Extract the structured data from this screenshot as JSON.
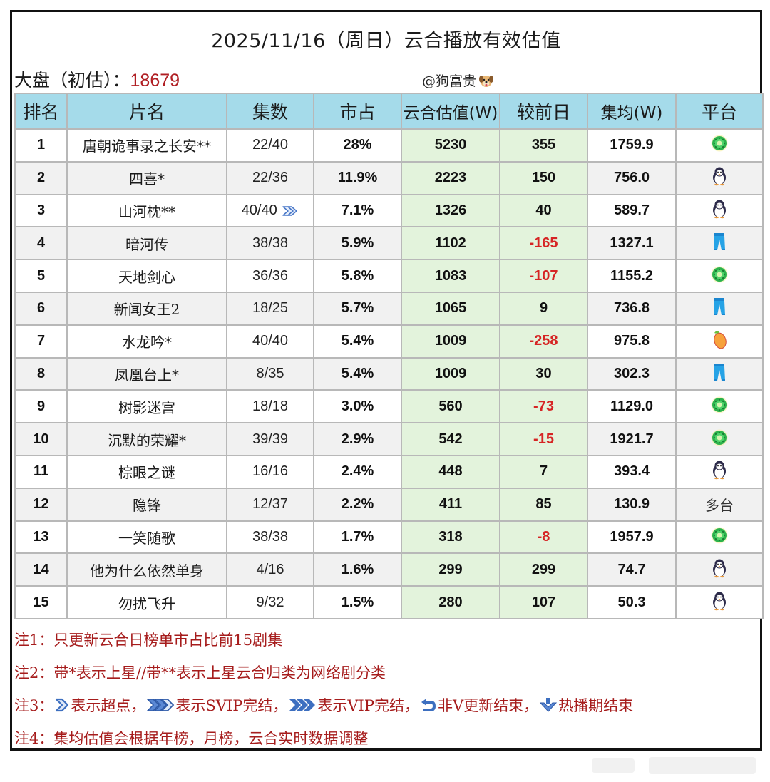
{
  "header": {
    "title": "2025/11/16（周日）云合播放有效估值",
    "summary_label": "大盘（初估）：",
    "summary_value": "18679",
    "credit": "@狗富贵",
    "credit_icon": "dog-face-icon"
  },
  "table": {
    "columns": [
      "排名",
      "片名",
      "集数",
      "市占",
      "云合估值(W)",
      "较前日",
      "集均(W)",
      "平台"
    ],
    "rows": [
      {
        "rank": "1",
        "title": "唐朝诡事录之长安**",
        "episodes": "22/40",
        "share": "28%",
        "value": "5230",
        "delta": "355",
        "avg": "1759.9",
        "platform": "kiwi-icon",
        "platform_text": ""
      },
      {
        "rank": "2",
        "title": "四喜*",
        "episodes": "22/36",
        "share": "11.9%",
        "value": "2223",
        "delta": "150",
        "avg": "756.0",
        "platform": "penguin-icon",
        "platform_text": ""
      },
      {
        "rank": "3",
        "title": "山河枕**",
        "episodes": "40/40",
        "episodes_badge": "single-chevron-icon",
        "share": "7.1%",
        "value": "1326",
        "delta": "40",
        "avg": "589.7",
        "platform": "penguin-icon",
        "platform_text": ""
      },
      {
        "rank": "4",
        "title": "暗河传",
        "episodes": "38/38",
        "share": "5.9%",
        "value": "1102",
        "delta": "-165",
        "avg": "1327.1",
        "platform": "pants-icon",
        "platform_text": ""
      },
      {
        "rank": "5",
        "title": "天地剑心",
        "episodes": "36/36",
        "share": "5.8%",
        "value": "1083",
        "delta": "-107",
        "avg": "1155.2",
        "platform": "kiwi-icon",
        "platform_text": ""
      },
      {
        "rank": "6",
        "title": "新闻女王2",
        "episodes": "18/25",
        "share": "5.7%",
        "value": "1065",
        "delta": "9",
        "avg": "736.8",
        "platform": "pants-icon",
        "platform_text": ""
      },
      {
        "rank": "7",
        "title": "水龙吟*",
        "episodes": "40/40",
        "share": "5.4%",
        "value": "1009",
        "delta": "-258",
        "avg": "975.8",
        "platform": "mango-icon",
        "platform_text": ""
      },
      {
        "rank": "8",
        "title": "凤凰台上*",
        "episodes": "8/35",
        "share": "5.4%",
        "value": "1009",
        "delta": "30",
        "avg": "302.3",
        "platform": "pants-icon",
        "platform_text": ""
      },
      {
        "rank": "9",
        "title": "树影迷宫",
        "episodes": "18/18",
        "share": "3.0%",
        "value": "560",
        "delta": "-73",
        "avg": "1129.0",
        "platform": "kiwi-icon",
        "platform_text": ""
      },
      {
        "rank": "10",
        "title": "沉默的荣耀*",
        "episodes": "39/39",
        "share": "2.9%",
        "value": "542",
        "delta": "-15",
        "avg": "1921.7",
        "platform": "kiwi-icon",
        "platform_text": ""
      },
      {
        "rank": "11",
        "title": "棕眼之谜",
        "episodes": "16/16",
        "share": "2.4%",
        "value": "448",
        "delta": "7",
        "avg": "393.4",
        "platform": "penguin-icon",
        "platform_text": ""
      },
      {
        "rank": "12",
        "title": "隐锋",
        "episodes": "12/37",
        "share": "2.2%",
        "value": "411",
        "delta": "85",
        "avg": "130.9",
        "platform": "text",
        "platform_text": "多台"
      },
      {
        "rank": "13",
        "title": "一笑随歌",
        "episodes": "38/38",
        "share": "1.7%",
        "value": "318",
        "delta": "-8",
        "avg": "1957.9",
        "platform": "kiwi-icon",
        "platform_text": ""
      },
      {
        "rank": "14",
        "title": "他为什么依然单身",
        "episodes": "4/16",
        "share": "1.6%",
        "value": "299",
        "delta": "299",
        "avg": "74.7",
        "platform": "penguin-icon",
        "platform_text": ""
      },
      {
        "rank": "15",
        "title": "勿扰飞升",
        "episodes": "9/32",
        "share": "1.5%",
        "value": "280",
        "delta": "107",
        "avg": "50.3",
        "platform": "penguin-icon",
        "platform_text": ""
      }
    ]
  },
  "notes": {
    "n1_label": "注1：",
    "n1_text": "只更新云合日榜单市占比前15剧集",
    "n2_label": "注2：",
    "n2_text": "带*表示上星//带**表示上星云合归类为网络剧分类",
    "n3_label": "注3：",
    "n3_a": "表示超点，",
    "n3_b": "表示SVIP完结，",
    "n3_c": "表示VIP完结，",
    "n3_d": "非V更新结束，",
    "n3_e": "热播期结束",
    "n4_label": "注4：",
    "n4_text": "集均估值会根据年榜，月榜，云合实时数据调整"
  },
  "colors": {
    "header_bg": "#a5dbea",
    "highlight_col_bg": "#e3f3dc",
    "negative": "#d62424",
    "summary_value": "#b01e23",
    "notes_text": "#a61c1c",
    "icon_blue": "#3d6fc0"
  }
}
